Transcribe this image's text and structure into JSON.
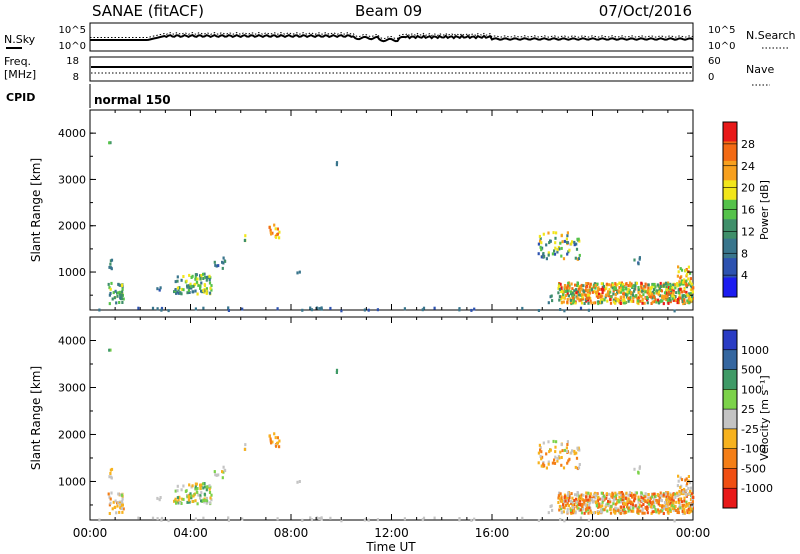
{
  "header": {
    "station": "SANAE (fitACF)",
    "beam": "Beam 09",
    "date": "07/Oct/2016"
  },
  "top_panels": {
    "nsky_label": "N.Sky",
    "nsearch_label": "N.Search",
    "log_tick_high": "10^5",
    "log_tick_low": "10^0",
    "freq_label_1": "Freq.",
    "freq_label_2": "[MHz]",
    "freq_ticks": [
      "18",
      "8"
    ],
    "nave_label": "Nave",
    "nave_ticks": [
      "60",
      "0"
    ],
    "cpid_label": "CPID",
    "cpid_value": "normal 150"
  },
  "colors": {
    "power_scale": [
      "#1c1cf0",
      "#2d52b0",
      "#39758c",
      "#3f8f6a",
      "#55c24a",
      "#f2e61a",
      "#f7a01e",
      "#f36a14",
      "#e81818"
    ],
    "velocity_scale": [
      "#e81818",
      "#f04e12",
      "#f47e16",
      "#f7b21e",
      "#c4c4c4",
      "#7cd24a",
      "#3f9a66",
      "#3567a0",
      "#2a3cc4"
    ]
  },
  "chart_data": [
    {
      "type": "heatmap",
      "name": "power",
      "ylabel": "Slant Range [km]",
      "xlabel": "Time UT",
      "xlim": [
        0,
        24
      ],
      "ylim": [
        180,
        4500
      ],
      "y_ticks": [
        "1000",
        "2000",
        "3000",
        "4000"
      ],
      "x_ticks": [
        "00:00",
        "04:00",
        "08:00",
        "12:00",
        "16:00",
        "20:00",
        "00:00"
      ],
      "colorbar_label": "Power [dB]",
      "colorbar_ticks": [
        "28",
        "24",
        "20",
        "16",
        "12",
        "8",
        "4"
      ],
      "clim": [
        0,
        30
      ]
    },
    {
      "type": "heatmap",
      "name": "velocity",
      "ylabel": "Slant Range [km]",
      "xlabel": "Time UT",
      "xlim": [
        0,
        24
      ],
      "ylim": [
        180,
        4500
      ],
      "y_ticks": [
        "1000",
        "2000",
        "3000",
        "4000"
      ],
      "x_ticks": [
        "00:00",
        "04:00",
        "08:00",
        "12:00",
        "16:00",
        "20:00",
        "00:00"
      ],
      "colorbar_label": "Velocity [m s⁻¹]",
      "colorbar_ticks": [
        "1000",
        "500",
        "100",
        "25",
        "-25",
        "-100",
        "-500",
        "-1000"
      ],
      "clim": [
        -1250,
        1250
      ]
    }
  ]
}
